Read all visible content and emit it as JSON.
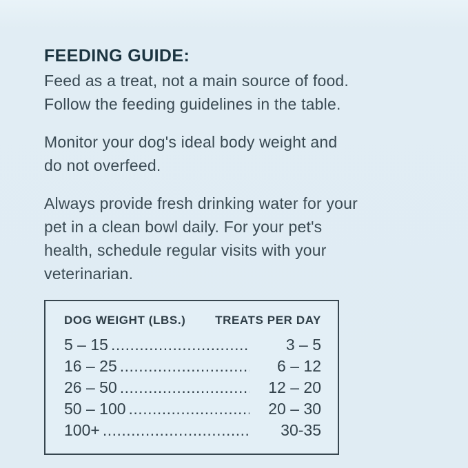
{
  "page": {
    "background_color": "#e0ecf3",
    "text_color": "#3a4a53",
    "heading_color": "#1b3440"
  },
  "guide": {
    "title": "FEEDING GUIDE:",
    "paragraphs": [
      {
        "lines": [
          "Feed as a treat, not a main source of food.",
          "Follow the feeding guidelines in the table."
        ]
      },
      {
        "lines": [
          "Monitor your dog's ideal body weight and",
          "do not overfeed."
        ]
      },
      {
        "lines": [
          "Always provide fresh drinking water for your",
          "pet in a clean bowl daily. For your pet's",
          "health, schedule regular visits with your",
          "veterinarian."
        ]
      }
    ]
  },
  "table": {
    "headers": {
      "weight": "DOG WEIGHT (LBS.)",
      "treats": "TREATS PER DAY"
    },
    "leader": "......................................................................",
    "rows": [
      {
        "weight": "5 – 15",
        "treats": "3 – 5"
      },
      {
        "weight": "16 – 25",
        "treats": "6 – 12"
      },
      {
        "weight": "26 – 50",
        "treats": "12 – 20"
      },
      {
        "weight": "50 – 100",
        "treats": "20 – 30"
      },
      {
        "weight": "100+",
        "treats": "30-35"
      }
    ]
  }
}
